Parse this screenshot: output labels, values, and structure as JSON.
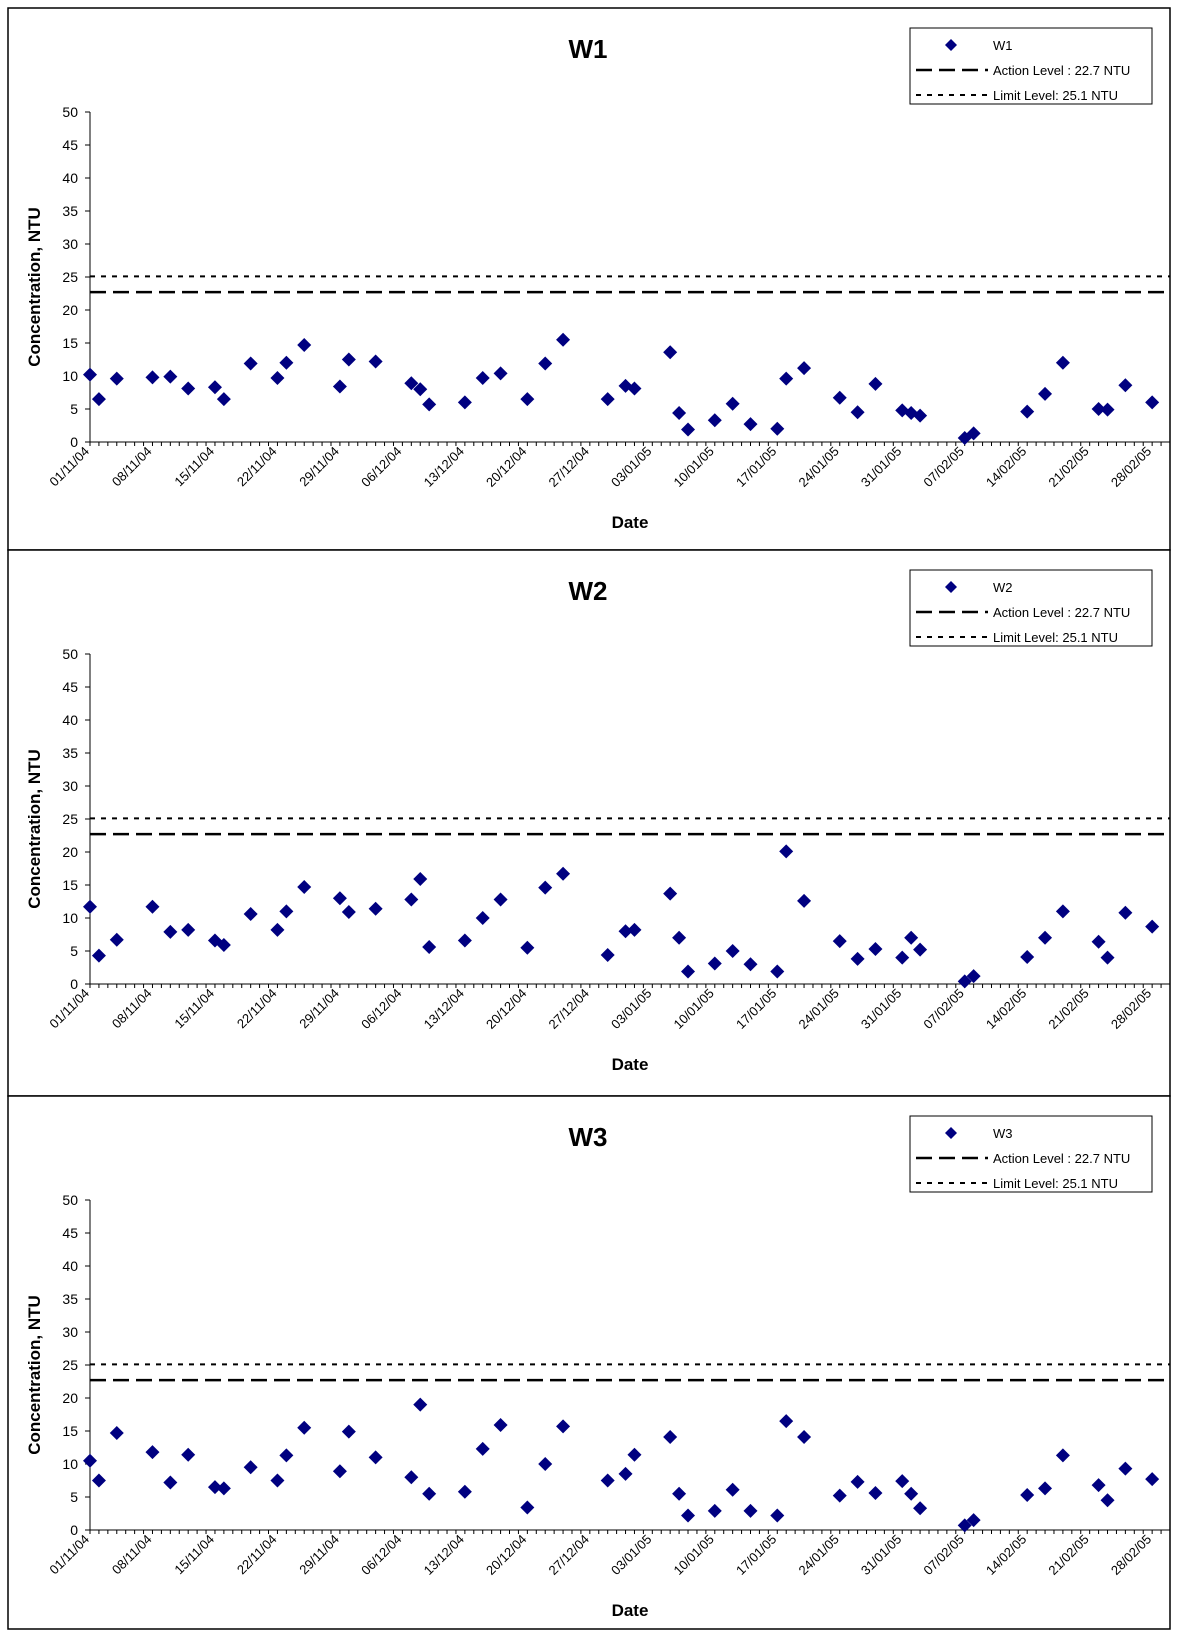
{
  "chart_data": [
    {
      "type": "scatter",
      "title": "W1",
      "xlabel": "Date",
      "ylabel": "Concentration, NTU",
      "ylim": [
        0,
        50
      ],
      "yticks": [
        0,
        5,
        10,
        15,
        20,
        25,
        30,
        35,
        40,
        45,
        50
      ],
      "xlim": [
        "2004-11-01",
        "2005-03-02"
      ],
      "xticks": [
        "01/11/04",
        "08/11/04",
        "15/11/04",
        "22/11/04",
        "29/11/04",
        "06/12/04",
        "13/12/04",
        "20/12/04",
        "27/12/04",
        "03/01/05",
        "10/01/05",
        "17/01/05",
        "24/01/05",
        "31/01/05",
        "07/02/05",
        "14/02/05",
        "21/02/05",
        "28/02/05"
      ],
      "grid": false,
      "legend_position": "top-right",
      "marker_color": "#000080",
      "series": [
        {
          "name": "W1",
          "x": [
            "2004-11-01",
            "2004-11-02",
            "2004-11-04",
            "2004-11-08",
            "2004-11-10",
            "2004-11-12",
            "2004-11-15",
            "2004-11-16",
            "2004-11-19",
            "2004-11-22",
            "2004-11-23",
            "2004-11-25",
            "2004-11-29",
            "2004-11-30",
            "2004-12-03",
            "2004-12-07",
            "2004-12-08",
            "2004-12-09",
            "2004-12-13",
            "2004-12-15",
            "2004-12-17",
            "2004-12-20",
            "2004-12-22",
            "2004-12-24",
            "2004-12-29",
            "2004-12-31",
            "2005-01-01",
            "2005-01-05",
            "2005-01-06",
            "2005-01-07",
            "2005-01-10",
            "2005-01-12",
            "2005-01-14",
            "2005-01-17",
            "2005-01-18",
            "2005-01-20",
            "2005-01-24",
            "2005-01-26",
            "2005-01-28",
            "2005-01-31",
            "2005-02-01",
            "2005-02-02",
            "2005-02-07",
            "2005-02-08",
            "2005-02-14",
            "2005-02-16",
            "2005-02-18",
            "2005-02-22",
            "2005-02-23",
            "2005-02-25",
            "2005-02-28"
          ],
          "y": [
            10.2,
            6.5,
            9.6,
            9.8,
            9.9,
            8.1,
            8.3,
            6.5,
            11.9,
            9.7,
            12.0,
            14.7,
            8.4,
            12.5,
            12.2,
            8.9,
            8.0,
            5.7,
            6.0,
            9.7,
            10.4,
            6.5,
            11.9,
            15.5,
            6.5,
            8.5,
            8.1,
            13.6,
            4.4,
            1.9,
            3.3,
            5.8,
            2.7,
            2.0,
            9.6,
            11.2,
            6.7,
            4.5,
            8.8,
            4.8,
            4.4,
            4.0,
            0.6,
            1.3,
            4.6,
            7.3,
            12.0,
            5.0,
            4.9,
            8.6,
            6.0
          ]
        }
      ],
      "reference_lines": [
        {
          "name": "Action Level : 22.7 NTU",
          "value": 22.7,
          "style": "long-dash"
        },
        {
          "name": "Limit Level: 25.1 NTU",
          "value": 25.1,
          "style": "short-dash"
        }
      ]
    },
    {
      "type": "scatter",
      "title": "W2",
      "xlabel": "Date",
      "ylabel": "Concentration, NTU",
      "ylim": [
        0,
        50
      ],
      "yticks": [
        0,
        5,
        10,
        15,
        20,
        25,
        30,
        35,
        40,
        45,
        50
      ],
      "xlim": [
        "2004-11-01",
        "2005-03-02"
      ],
      "xticks": [
        "01/11/04",
        "08/11/04",
        "15/11/04",
        "22/11/04",
        "29/11/04",
        "06/12/04",
        "13/12/04",
        "20/12/04",
        "27/12/04",
        "03/01/05",
        "10/01/05",
        "17/01/05",
        "24/01/05",
        "31/01/05",
        "07/02/05",
        "14/02/05",
        "21/02/05",
        "28/02/05"
      ],
      "grid": false,
      "legend_position": "top-right",
      "marker_color": "#000080",
      "series": [
        {
          "name": "W2",
          "x": [
            "2004-11-01",
            "2004-11-02",
            "2004-11-04",
            "2004-11-08",
            "2004-11-10",
            "2004-11-12",
            "2004-11-15",
            "2004-11-16",
            "2004-11-19",
            "2004-11-22",
            "2004-11-23",
            "2004-11-25",
            "2004-11-29",
            "2004-11-30",
            "2004-12-03",
            "2004-12-07",
            "2004-12-08",
            "2004-12-09",
            "2004-12-13",
            "2004-12-15",
            "2004-12-17",
            "2004-12-20",
            "2004-12-22",
            "2004-12-24",
            "2004-12-29",
            "2004-12-31",
            "2005-01-01",
            "2005-01-05",
            "2005-01-06",
            "2005-01-07",
            "2005-01-10",
            "2005-01-12",
            "2005-01-14",
            "2005-01-17",
            "2005-01-18",
            "2005-01-20",
            "2005-01-24",
            "2005-01-26",
            "2005-01-28",
            "2005-01-31",
            "2005-02-01",
            "2005-02-02",
            "2005-02-07",
            "2005-02-08",
            "2005-02-14",
            "2005-02-16",
            "2005-02-18",
            "2005-02-22",
            "2005-02-23",
            "2005-02-25",
            "2005-02-28"
          ],
          "y": [
            11.7,
            4.3,
            6.7,
            11.7,
            7.9,
            8.2,
            6.6,
            5.9,
            10.6,
            8.2,
            11.0,
            14.7,
            13.0,
            10.9,
            11.4,
            12.8,
            15.9,
            5.6,
            6.6,
            10.0,
            12.8,
            5.5,
            14.6,
            16.7,
            4.4,
            8.0,
            8.2,
            13.7,
            7.0,
            1.9,
            3.1,
            5.0,
            3.0,
            1.9,
            20.1,
            12.6,
            6.5,
            3.8,
            5.3,
            4.0,
            7.0,
            5.2,
            0.4,
            1.2,
            4.1,
            7.0,
            11.0,
            6.4,
            4.0,
            10.8,
            8.7
          ]
        }
      ],
      "reference_lines": [
        {
          "name": "Action Level : 22.7 NTU",
          "value": 22.7,
          "style": "long-dash"
        },
        {
          "name": "Limit Level: 25.1 NTU",
          "value": 25.1,
          "style": "short-dash"
        }
      ]
    },
    {
      "type": "scatter",
      "title": "W3",
      "xlabel": "Date",
      "ylabel": "Concentration, NTU",
      "ylim": [
        0,
        50
      ],
      "yticks": [
        0,
        5,
        10,
        15,
        20,
        25,
        30,
        35,
        40,
        45,
        50
      ],
      "xlim": [
        "2004-11-01",
        "2005-03-02"
      ],
      "xticks": [
        "01/11/04",
        "08/11/04",
        "15/11/04",
        "22/11/04",
        "29/11/04",
        "06/12/04",
        "13/12/04",
        "20/12/04",
        "27/12/04",
        "03/01/05",
        "10/01/05",
        "17/01/05",
        "24/01/05",
        "31/01/05",
        "07/02/05",
        "14/02/05",
        "21/02/05",
        "28/02/05"
      ],
      "grid": false,
      "legend_position": "top-right",
      "marker_color": "#000080",
      "series": [
        {
          "name": "W3",
          "x": [
            "2004-11-01",
            "2004-11-02",
            "2004-11-04",
            "2004-11-08",
            "2004-11-10",
            "2004-11-12",
            "2004-11-15",
            "2004-11-16",
            "2004-11-19",
            "2004-11-22",
            "2004-11-23",
            "2004-11-25",
            "2004-11-29",
            "2004-11-30",
            "2004-12-03",
            "2004-12-07",
            "2004-12-08",
            "2004-12-09",
            "2004-12-13",
            "2004-12-15",
            "2004-12-17",
            "2004-12-20",
            "2004-12-22",
            "2004-12-24",
            "2004-12-29",
            "2004-12-31",
            "2005-01-01",
            "2005-01-05",
            "2005-01-06",
            "2005-01-07",
            "2005-01-10",
            "2005-01-12",
            "2005-01-14",
            "2005-01-17",
            "2005-01-18",
            "2005-01-20",
            "2005-01-24",
            "2005-01-26",
            "2005-01-28",
            "2005-01-31",
            "2005-02-01",
            "2005-02-02",
            "2005-02-07",
            "2005-02-08",
            "2005-02-14",
            "2005-02-16",
            "2005-02-18",
            "2005-02-22",
            "2005-02-23",
            "2005-02-25",
            "2005-02-28"
          ],
          "y": [
            10.5,
            7.5,
            14.7,
            11.8,
            7.2,
            11.4,
            6.5,
            6.3,
            9.5,
            7.5,
            11.3,
            15.5,
            8.9,
            14.9,
            11.0,
            8.0,
            19.0,
            5.5,
            5.8,
            12.3,
            15.9,
            3.4,
            10.0,
            15.7,
            7.5,
            8.5,
            11.4,
            14.1,
            5.5,
            2.2,
            2.9,
            6.1,
            2.9,
            2.2,
            16.5,
            14.1,
            5.2,
            7.3,
            5.6,
            7.4,
            5.5,
            3.3,
            0.7,
            1.5,
            5.3,
            6.3,
            11.3,
            6.8,
            4.5,
            9.3,
            7.7
          ]
        }
      ],
      "reference_lines": [
        {
          "name": "Action Level : 22.7 NTU",
          "value": 22.7,
          "style": "long-dash"
        },
        {
          "name": "Limit Level: 25.1 NTU",
          "value": 25.1,
          "style": "short-dash"
        }
      ]
    }
  ]
}
